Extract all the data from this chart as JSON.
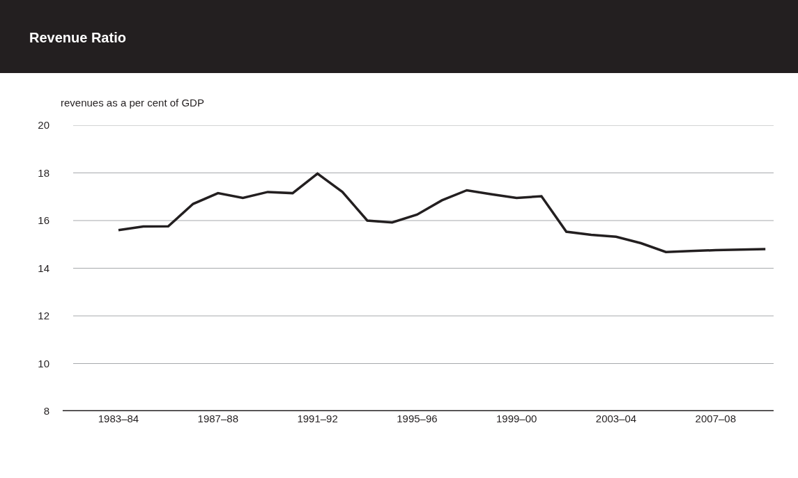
{
  "chart_data": {
    "type": "line",
    "title": "Revenue Ratio",
    "ylabel": "revenues as a per cent of GDP",
    "categories": [
      "1983–84",
      null,
      null,
      null,
      "1987–88",
      null,
      null,
      null,
      "1991–92",
      null,
      null,
      null,
      "1995–96",
      null,
      null,
      null,
      "1999–00",
      null,
      null,
      null,
      "2003–04",
      null,
      null,
      null,
      "2007–08",
      null,
      null
    ],
    "series": [
      {
        "color": "#231f20",
        "values": [
          15.6,
          15.75,
          15.76,
          16.7,
          17.15,
          16.95,
          17.2,
          17.15,
          17.97,
          17.2,
          16.0,
          15.92,
          16.25,
          16.85,
          17.27,
          17.1,
          16.95,
          17.02,
          15.53,
          15.4,
          15.32,
          15.05,
          14.68,
          14.72,
          14.76,
          14.78,
          14.8
        ]
      }
    ],
    "ylim": [
      8,
      20
    ],
    "yticks": [
      8,
      10,
      12,
      14,
      16,
      18,
      20
    ],
    "grid": "y",
    "marker": "none",
    "line_style": "solid"
  }
}
